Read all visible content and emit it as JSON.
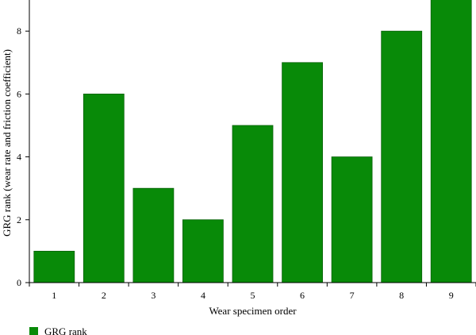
{
  "chart_data": {
    "type": "bar",
    "categories": [
      "1",
      "2",
      "3",
      "4",
      "5",
      "6",
      "7",
      "8",
      "9"
    ],
    "series": [
      {
        "name": "GRG rank",
        "values": [
          1,
          6,
          3,
          2,
          5,
          7,
          4,
          8,
          9
        ]
      }
    ],
    "xlabel": "Wear specimen order",
    "ylabel": "GRG rank (wear rate and friction coefficient)",
    "ylim": [
      0,
      9
    ],
    "yticks": [
      0,
      2,
      4,
      6,
      8
    ],
    "grid": false,
    "legend_position": "bottom-left",
    "bar_color": "#088A08",
    "bar_edge_color": "#0C620C"
  }
}
